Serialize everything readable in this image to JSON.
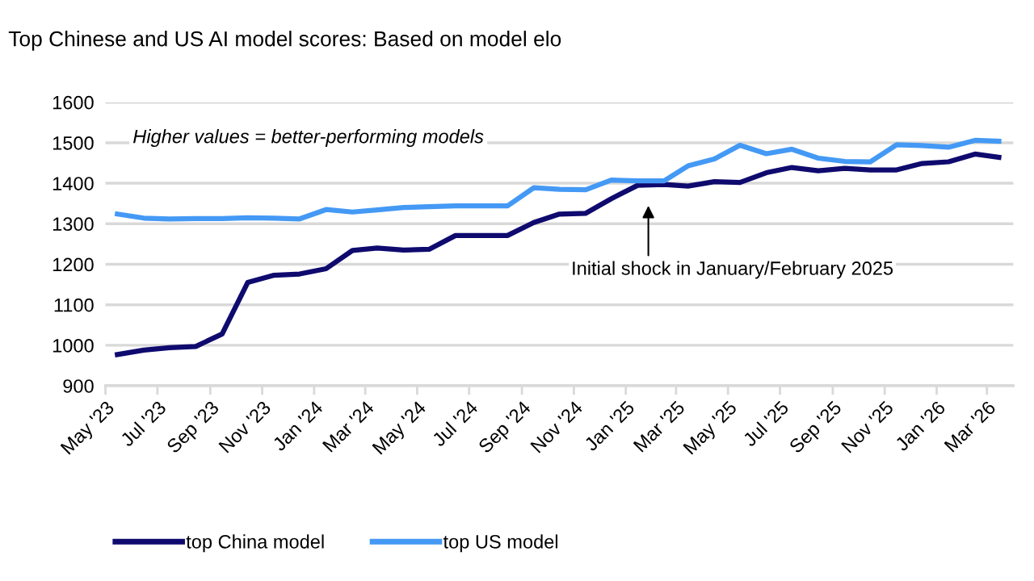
{
  "chart_data": {
    "type": "line",
    "title": "Top Chinese and US AI model scores: Based on model elo",
    "x": [
      "2023-05-15",
      "2023-06-15",
      "2023-07-15",
      "2023-08-15",
      "2023-09-15",
      "2023-10-15",
      "2023-11-15",
      "2023-12-15",
      "2024-01-15",
      "2024-02-15",
      "2024-03-15",
      "2024-04-15",
      "2024-05-15",
      "2024-06-15",
      "2024-07-15",
      "2024-08-15",
      "2024-09-15",
      "2024-10-15",
      "2024-11-15",
      "2024-12-15",
      "2025-01-15",
      "2025-02-15",
      "2025-03-15",
      "2025-04-15",
      "2025-05-15",
      "2025-06-15",
      "2025-07-15",
      "2025-08-15",
      "2025-09-15",
      "2025-10-15",
      "2025-11-15",
      "2025-12-15",
      "2026-01-15",
      "2026-02-15",
      "2026-03-15"
    ],
    "series": [
      {
        "name": "top China model",
        "color": "#0f0a6e",
        "values": [
          977,
          988,
          994,
          997,
          1028,
          1155,
          1173,
          1176,
          1189,
          1234,
          1240,
          1235,
          1237,
          1271,
          1271,
          1271,
          1303,
          1324,
          1326,
          1362,
          1395,
          1397,
          1393,
          1404,
          1402,
          1426,
          1439,
          1431,
          1437,
          1433,
          1433,
          1449,
          1453,
          1472,
          1464
        ]
      },
      {
        "name": "top US model",
        "color": "#4499f5",
        "values": [
          1324,
          1314,
          1312,
          1313,
          1313,
          1315,
          1314,
          1312,
          1335,
          1329,
          1334,
          1340,
          1342,
          1344,
          1344,
          1344,
          1389,
          1385,
          1384,
          1408,
          1406,
          1406,
          1443,
          1460,
          1494,
          1473,
          1484,
          1462,
          1454,
          1453,
          1495,
          1493,
          1489,
          1506,
          1504
        ]
      }
    ],
    "xlim": [
      "2023-05-01",
      "2026-04-01"
    ],
    "xticks": [
      {
        "value": "2023-05-01",
        "label": "May '23"
      },
      {
        "value": "2023-07-01",
        "label": "Jul '23"
      },
      {
        "value": "2023-09-01",
        "label": "Sep '23"
      },
      {
        "value": "2023-11-01",
        "label": "Nov '23"
      },
      {
        "value": "2024-01-01",
        "label": "Jan '24"
      },
      {
        "value": "2024-03-01",
        "label": "Mar '24"
      },
      {
        "value": "2024-05-01",
        "label": "May '24"
      },
      {
        "value": "2024-07-01",
        "label": "Jul '24"
      },
      {
        "value": "2024-09-01",
        "label": "Sep '24"
      },
      {
        "value": "2024-11-01",
        "label": "Nov '24"
      },
      {
        "value": "2025-01-01",
        "label": "Jan '25"
      },
      {
        "value": "2025-03-01",
        "label": "Mar '25"
      },
      {
        "value": "2025-05-01",
        "label": "May '25"
      },
      {
        "value": "2025-07-01",
        "label": "Jul '25"
      },
      {
        "value": "2025-09-01",
        "label": "Sep '25"
      },
      {
        "value": "2025-11-01",
        "label": "Nov '25"
      },
      {
        "value": "2026-01-01",
        "label": "Jan '26"
      },
      {
        "value": "2026-03-01",
        "label": "Mar '26"
      }
    ],
    "ylim": [
      900,
      1600
    ],
    "yticks": [
      900,
      1000,
      1100,
      1200,
      1300,
      1400,
      1500,
      1600
    ],
    "grid": "y",
    "legend": "bottom",
    "marker": "none",
    "line_style": "solid",
    "annotations": [
      "Higher values = better-performing models",
      "Initial shock in January/February 2025"
    ]
  }
}
